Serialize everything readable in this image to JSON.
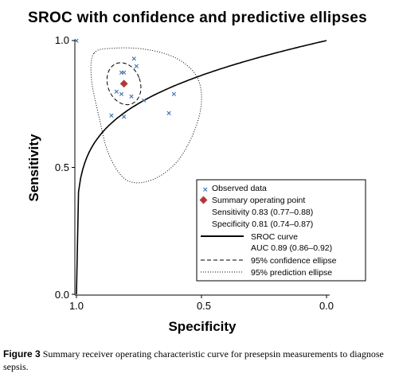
{
  "chart_data": {
    "type": "scatter",
    "title": "SROC with confidence and predictive ellipses",
    "xlabel": "Specificity",
    "ylabel": "Sensitivity",
    "xlim": [
      1.0,
      0.0
    ],
    "ylim": [
      0.0,
      1.0
    ],
    "x_ticks": [
      "1.0",
      "0.5",
      "0.0"
    ],
    "y_ticks": [
      "0.0",
      "0.5",
      "1.0"
    ],
    "grid": false,
    "legend_position": "bottom-right",
    "observed_data": {
      "name": "Observed data",
      "marker": "×",
      "color": "#3a6fb0",
      "points": [
        {
          "specificity": 1.0,
          "sensitivity": 1.0
        },
        {
          "specificity": 0.77,
          "sensitivity": 0.93
        },
        {
          "specificity": 0.76,
          "sensitivity": 0.9
        },
        {
          "specificity": 0.81,
          "sensitivity": 0.875
        },
        {
          "specificity": 0.82,
          "sensitivity": 0.875
        },
        {
          "specificity": 0.84,
          "sensitivity": 0.8
        },
        {
          "specificity": 0.82,
          "sensitivity": 0.79
        },
        {
          "specificity": 0.78,
          "sensitivity": 0.78
        },
        {
          "specificity": 0.73,
          "sensitivity": 0.765
        },
        {
          "specificity": 0.61,
          "sensitivity": 0.79
        },
        {
          "specificity": 0.86,
          "sensitivity": 0.705
        },
        {
          "specificity": 0.81,
          "sensitivity": 0.7
        },
        {
          "specificity": 0.63,
          "sensitivity": 0.715
        }
      ]
    },
    "summary_point": {
      "name": "Summary operating point",
      "specificity": 0.81,
      "sensitivity": 0.83,
      "color": "#b03a3a",
      "sensitivity_label": "Sensitivity 0.83 (0.77–0.88)",
      "specificity_label": "Specificity 0.81 (0.74–0.87)"
    },
    "sroc_curve": {
      "name": "SROC curve",
      "auc_label": "AUC 0.89 (0.86–0.92)"
    },
    "confidence_ellipse": {
      "name": "95% confidence ellipse",
      "center": {
        "specificity": 0.81,
        "sensitivity": 0.83
      },
      "radius_specificity": 0.065,
      "radius_sensitivity": 0.085
    },
    "prediction_ellipse": {
      "name": "95% prediction ellipse",
      "outline": [
        {
          "specificity": 0.93,
          "sensitivity": 0.95
        },
        {
          "specificity": 0.85,
          "sensitivity": 0.97
        },
        {
          "specificity": 0.72,
          "sensitivity": 0.965
        },
        {
          "specificity": 0.6,
          "sensitivity": 0.93
        },
        {
          "specificity": 0.52,
          "sensitivity": 0.86
        },
        {
          "specificity": 0.5,
          "sensitivity": 0.76
        },
        {
          "specificity": 0.53,
          "sensitivity": 0.64
        },
        {
          "specificity": 0.6,
          "sensitivity": 0.52
        },
        {
          "specificity": 0.7,
          "sensitivity": 0.45
        },
        {
          "specificity": 0.8,
          "sensitivity": 0.45
        },
        {
          "specificity": 0.87,
          "sensitivity": 0.55
        },
        {
          "specificity": 0.91,
          "sensitivity": 0.7
        },
        {
          "specificity": 0.94,
          "sensitivity": 0.85
        }
      ]
    }
  },
  "caption": {
    "label": "Figure 3",
    "text": " Summary receiver operating characteristic curve for presepsin measurements to diagnose sepsis."
  }
}
